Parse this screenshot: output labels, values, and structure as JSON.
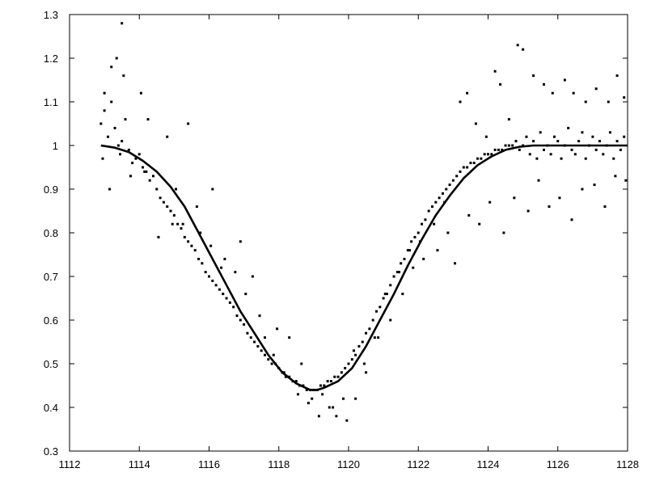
{
  "chart_data": {
    "type": "scatter",
    "title": "",
    "xlabel": "",
    "ylabel": "",
    "xlim": [
      1112,
      1128
    ],
    "ylim": [
      0.3,
      1.3
    ],
    "grid": false,
    "legend": "none",
    "xticks": [
      1112,
      1114,
      1116,
      1118,
      1120,
      1122,
      1124,
      1126,
      1128
    ],
    "xtick_labels": [
      "1112",
      "1114",
      "1116",
      "1118",
      "1120",
      "1122",
      "1124",
      "1126",
      "1128"
    ],
    "yticks": [
      0.3,
      0.4,
      0.5,
      0.6,
      0.7,
      0.8,
      0.9,
      1.0,
      1.1,
      1.2,
      1.3
    ],
    "ytick_labels": [
      "0.3",
      "0.4",
      "0.5",
      "0.6",
      "0.7",
      "0.8",
      "0.9",
      "1",
      "1.1",
      "1.2",
      "1.3"
    ],
    "colors": {
      "points": "#000000",
      "fit": "#000000",
      "frame": "#000000"
    },
    "series": [
      {
        "kind": "points",
        "x": [
          1112.9,
          1113.0,
          1113.1,
          1113.2,
          1113.3,
          1113.4,
          1113.5,
          1113.6,
          1113.7,
          1113.8,
          1113.9,
          1114.0,
          1114.1,
          1114.2,
          1114.3,
          1114.4,
          1114.5,
          1114.6,
          1114.7,
          1114.8,
          1114.9,
          1115.0,
          1115.1,
          1115.2,
          1115.3,
          1115.4,
          1115.5,
          1115.6,
          1115.7,
          1115.8,
          1115.9,
          1116.0,
          1116.1,
          1116.2,
          1116.3,
          1116.4,
          1116.5,
          1116.6,
          1116.7,
          1116.8,
          1116.9,
          1117.0,
          1117.1,
          1117.2,
          1117.3,
          1117.4,
          1117.5,
          1117.6,
          1117.7,
          1117.8,
          1117.9,
          1118.0,
          1118.1,
          1118.2,
          1118.3,
          1118.4,
          1118.5,
          1118.6,
          1118.7,
          1118.8,
          1118.9,
          1119.0,
          1119.1,
          1119.2,
          1119.3,
          1119.4,
          1119.5,
          1119.6,
          1119.7,
          1119.8,
          1119.9,
          1120.0,
          1120.1,
          1120.2,
          1120.3,
          1120.4,
          1120.5,
          1120.6,
          1120.7,
          1120.8,
          1120.9,
          1121.0,
          1121.1,
          1121.2,
          1121.3,
          1121.4,
          1121.5,
          1121.6,
          1121.7,
          1121.8,
          1121.9,
          1122.0,
          1122.1,
          1122.2,
          1122.3,
          1122.4,
          1122.5,
          1122.6,
          1122.7,
          1122.8,
          1122.9,
          1123.0,
          1123.1,
          1123.2,
          1123.3,
          1123.4,
          1123.5,
          1123.6,
          1123.7,
          1123.8,
          1123.9,
          1124.0,
          1124.1,
          1124.2,
          1124.3,
          1124.4,
          1124.5,
          1124.6,
          1124.7,
          1124.8,
          1124.9,
          1125.0,
          1125.1,
          1125.2,
          1125.3,
          1125.4,
          1125.5,
          1125.6,
          1125.7,
          1125.8,
          1125.9,
          1126.0,
          1126.1,
          1126.2,
          1126.3,
          1126.4,
          1126.5,
          1126.6,
          1126.7,
          1126.8,
          1126.9,
          1127.0,
          1127.1,
          1127.2,
          1127.3,
          1127.4,
          1127.5,
          1127.6,
          1127.7,
          1127.8,
          1127.9,
          1113.0,
          1113.2,
          1113.35,
          1113.5,
          1113.55,
          1114.05,
          1114.25,
          1114.8,
          1115.05,
          1115.4,
          1115.75,
          1116.1,
          1116.45,
          1116.9,
          1117.25,
          1117.6,
          1117.95,
          1118.3,
          1118.65,
          1118.95,
          1119.15,
          1119.45,
          1119.65,
          1119.95,
          1120.2,
          1120.5,
          1120.85,
          1121.2,
          1121.55,
          1121.85,
          1122.15,
          1122.55,
          1122.85,
          1123.2,
          1123.4,
          1123.65,
          1123.95,
          1124.2,
          1124.35,
          1124.6,
          1124.85,
          1125.0,
          1125.3,
          1125.6,
          1125.85,
          1126.2,
          1126.45,
          1126.8,
          1127.1,
          1127.45,
          1127.7,
          1127.9,
          1112.95,
          1113.15,
          1113.45,
          1113.75,
          1114.15,
          1114.55,
          1114.95,
          1115.25,
          1115.65,
          1116.05,
          1116.35,
          1116.75,
          1117.05,
          1117.45,
          1117.85,
          1118.15,
          1118.55,
          1118.85,
          1119.25,
          1119.55,
          1119.85,
          1120.15,
          1120.45,
          1120.75,
          1121.05,
          1121.45,
          1121.75,
          1122.05,
          1122.45,
          1122.75,
          1123.05,
          1123.45,
          1123.75,
          1124.05,
          1124.45,
          1124.75,
          1125.15,
          1125.45,
          1125.75,
          1126.05,
          1126.4,
          1126.7,
          1127.05,
          1127.35,
          1127.65,
          1127.95
        ],
        "y": [
          1.05,
          1.08,
          1.02,
          1.1,
          1.04,
          1.0,
          1.01,
          1.06,
          0.99,
          0.96,
          0.97,
          0.98,
          0.95,
          0.94,
          0.92,
          0.93,
          0.9,
          0.88,
          0.87,
          0.86,
          0.85,
          0.84,
          0.82,
          0.81,
          0.79,
          0.78,
          0.77,
          0.76,
          0.74,
          0.73,
          0.71,
          0.7,
          0.69,
          0.68,
          0.67,
          0.66,
          0.65,
          0.64,
          0.63,
          0.61,
          0.6,
          0.59,
          0.57,
          0.56,
          0.55,
          0.54,
          0.53,
          0.52,
          0.51,
          0.5,
          0.5,
          0.49,
          0.48,
          0.47,
          0.47,
          0.46,
          0.46,
          0.45,
          0.45,
          0.44,
          0.44,
          0.44,
          0.44,
          0.45,
          0.45,
          0.46,
          0.46,
          0.47,
          0.47,
          0.48,
          0.49,
          0.5,
          0.51,
          0.52,
          0.54,
          0.55,
          0.57,
          0.58,
          0.6,
          0.62,
          0.63,
          0.65,
          0.66,
          0.68,
          0.7,
          0.71,
          0.73,
          0.74,
          0.76,
          0.78,
          0.79,
          0.8,
          0.82,
          0.83,
          0.85,
          0.86,
          0.87,
          0.88,
          0.89,
          0.9,
          0.91,
          0.92,
          0.93,
          0.94,
          0.95,
          0.95,
          0.96,
          0.96,
          0.97,
          0.97,
          0.98,
          0.98,
          0.98,
          0.99,
          0.99,
          0.99,
          1.0,
          1.0,
          1.0,
          1.01,
          0.99,
          1.0,
          1.02,
          0.98,
          1.01,
          0.97,
          1.03,
          0.99,
          1.0,
          0.98,
          1.02,
          1.01,
          0.97,
          1.0,
          1.04,
          0.99,
          0.98,
          1.01,
          1.03,
          0.97,
          1.0,
          1.02,
          0.99,
          1.01,
          0.98,
          1.0,
          1.03,
          0.97,
          1.01,
          0.99,
          1.02,
          1.12,
          1.18,
          1.2,
          1.28,
          1.16,
          1.12,
          1.06,
          1.02,
          0.9,
          1.05,
          0.8,
          0.9,
          0.74,
          0.78,
          0.7,
          0.56,
          0.58,
          0.56,
          0.5,
          0.42,
          0.38,
          0.4,
          0.38,
          0.37,
          0.42,
          0.48,
          0.56,
          0.6,
          0.66,
          0.72,
          0.74,
          0.76,
          0.8,
          1.1,
          1.12,
          1.05,
          1.02,
          1.17,
          1.14,
          1.06,
          1.23,
          1.22,
          1.16,
          1.14,
          1.12,
          1.15,
          1.12,
          1.1,
          1.13,
          1.1,
          1.16,
          1.11,
          0.97,
          0.9,
          0.98,
          0.93,
          0.94,
          0.79,
          0.82,
          0.82,
          0.86,
          0.77,
          0.72,
          0.71,
          0.66,
          0.61,
          0.52,
          0.48,
          0.43,
          0.41,
          0.43,
          0.4,
          0.42,
          0.53,
          0.5,
          0.56,
          0.66,
          0.71,
          0.76,
          0.78,
          0.82,
          0.87,
          0.73,
          0.84,
          0.82,
          0.87,
          0.8,
          0.88,
          0.85,
          0.92,
          0.86,
          0.88,
          0.83,
          0.9,
          0.91,
          0.86,
          0.93,
          0.92
        ]
      },
      {
        "kind": "fit",
        "x": [
          1112.9,
          1113.3,
          1113.7,
          1114.1,
          1114.5,
          1114.9,
          1115.3,
          1115.7,
          1116.1,
          1116.5,
          1116.9,
          1117.3,
          1117.7,
          1118.1,
          1118.5,
          1118.9,
          1119.1,
          1119.3,
          1119.7,
          1120.1,
          1120.5,
          1120.9,
          1121.3,
          1121.7,
          1122.1,
          1122.5,
          1122.9,
          1123.3,
          1123.7,
          1124.1,
          1124.5,
          1124.9,
          1125.3,
          1125.7,
          1126.1,
          1126.5,
          1127.0,
          1127.5,
          1128.0
        ],
        "y": [
          1.0,
          0.995,
          0.985,
          0.965,
          0.94,
          0.905,
          0.86,
          0.8,
          0.74,
          0.68,
          0.62,
          0.57,
          0.52,
          0.48,
          0.455,
          0.44,
          0.44,
          0.445,
          0.46,
          0.49,
          0.54,
          0.6,
          0.66,
          0.725,
          0.785,
          0.84,
          0.885,
          0.925,
          0.955,
          0.975,
          0.99,
          0.997,
          1.0,
          1.0,
          1.0,
          1.0,
          1.0,
          1.0,
          1.0
        ]
      }
    ]
  }
}
